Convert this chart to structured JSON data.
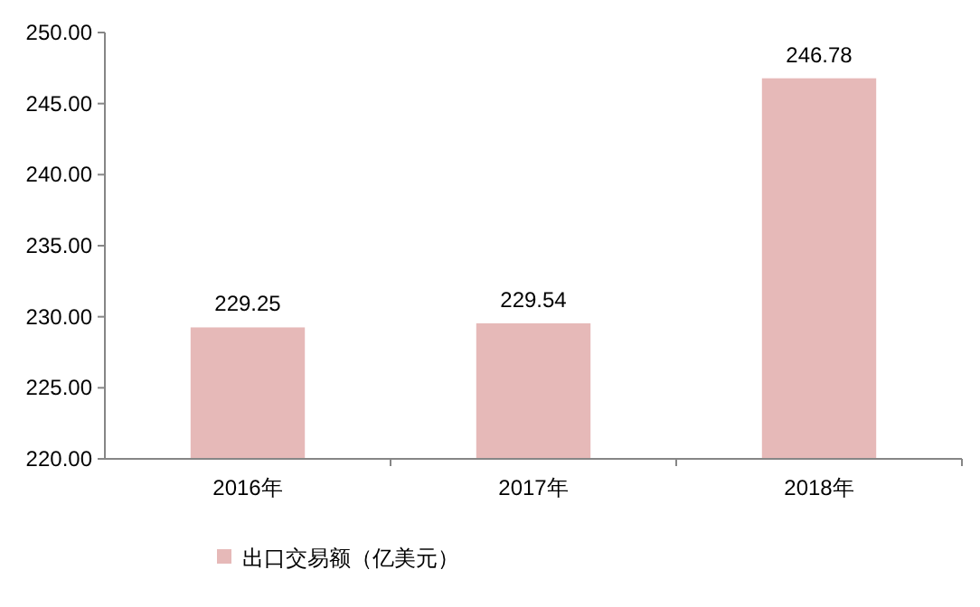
{
  "chart_data": {
    "type": "bar",
    "categories": [
      "2016年",
      "2017年",
      "2018年"
    ],
    "series": [
      {
        "name": "出口交易额（亿美元）",
        "color": "#e6b9b8",
        "values": [
          229.25,
          229.54,
          246.78
        ]
      }
    ],
    "ylim": [
      220,
      250
    ],
    "yticks": [
      {
        "value": 220,
        "label": "220.00"
      },
      {
        "value": 225,
        "label": "225.00"
      },
      {
        "value": 230,
        "label": "230.00"
      },
      {
        "value": 235,
        "label": "235.00"
      },
      {
        "value": 240,
        "label": "240.00"
      },
      {
        "value": 245,
        "label": "245.00"
      },
      {
        "value": 250,
        "label": "250.00"
      }
    ],
    "data_labels": true,
    "legend": "bottom",
    "grid": false
  }
}
